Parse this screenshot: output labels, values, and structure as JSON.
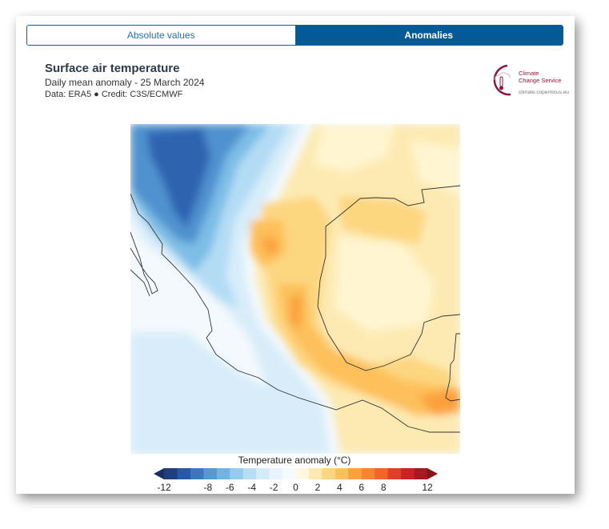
{
  "tabs": [
    {
      "label": "Absolute values",
      "active": false
    },
    {
      "label": "Anomalies",
      "active": true
    }
  ],
  "header": {
    "title": "Surface air temperature",
    "subtitle": "Daily mean anomaly - 25 March 2024",
    "credit": "Data: ERA5 ● Credit: C3S/ECMWF"
  },
  "logo": {
    "line1": "Climate",
    "line2": "Change Service",
    "url": "climate.copernicus.eu",
    "icon": "thermometer-cloud-icon",
    "color": "#8b1a3a"
  },
  "map": {
    "variable": "Surface air temperature anomaly",
    "region": "Mexico and Central America"
  },
  "colorbar": {
    "title": "Temperature anomaly (°C)",
    "ticks": [
      "-12",
      "-8",
      "-6",
      "-4",
      "-2",
      "0",
      "2",
      "4",
      "6",
      "8",
      "12"
    ],
    "min": -12,
    "max": 12,
    "extend": "both",
    "colors": [
      "#1f3f7f",
      "#2659a8",
      "#3a78c0",
      "#519ad4",
      "#6fb4e2",
      "#93ccee",
      "#b5def5",
      "#d4ebf8",
      "#e8f4fb",
      "#f5faff",
      "#fff8e0",
      "#feeab0",
      "#fdd680",
      "#fdc05a",
      "#fca23a",
      "#f98530",
      "#f26428",
      "#e0402a",
      "#cc1f26",
      "#a8181e"
    ],
    "under_color": "#1a2f66",
    "over_color": "#8a1218"
  }
}
